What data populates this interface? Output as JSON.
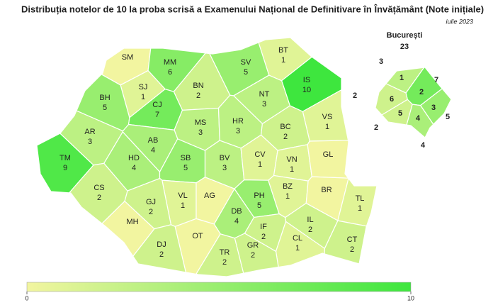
{
  "title": "Distribuția notelor de 10 la proba scrisă a Examenului Național de Definitivare în Învățământ (Note inițiale)",
  "subtitle": "iulie 2023",
  "counties": [
    {
      "code": "SM",
      "value": null
    },
    {
      "code": "MM",
      "value": 6
    },
    {
      "code": "BT",
      "value": 1
    },
    {
      "code": "SV",
      "value": 5
    },
    {
      "code": "IS",
      "value": 10
    },
    {
      "code": "SJ",
      "value": 1
    },
    {
      "code": "BN",
      "value": 2
    },
    {
      "code": "NT",
      "value": 3
    },
    {
      "code": "BH",
      "value": 5
    },
    {
      "code": "CJ",
      "value": 7
    },
    {
      "code": "VS",
      "value": 1
    },
    {
      "code": "MS",
      "value": 3
    },
    {
      "code": "HR",
      "value": 3
    },
    {
      "code": "BC",
      "value": 2
    },
    {
      "code": "AR",
      "value": 3
    },
    {
      "code": "AB",
      "value": 4
    },
    {
      "code": "TM",
      "value": 9
    },
    {
      "code": "HD",
      "value": 4
    },
    {
      "code": "SB",
      "value": 5
    },
    {
      "code": "BV",
      "value": 3
    },
    {
      "code": "CV",
      "value": 1
    },
    {
      "code": "VN",
      "value": 1
    },
    {
      "code": "GL",
      "value": null
    },
    {
      "code": "CS",
      "value": 2
    },
    {
      "code": "VL",
      "value": 1
    },
    {
      "code": "AG",
      "value": null
    },
    {
      "code": "PH",
      "value": 5
    },
    {
      "code": "BZ",
      "value": 1
    },
    {
      "code": "BR",
      "value": null
    },
    {
      "code": "TL",
      "value": 1
    },
    {
      "code": "GJ",
      "value": 2
    },
    {
      "code": "MH",
      "value": null
    },
    {
      "code": "DB",
      "value": 4
    },
    {
      "code": "IL",
      "value": 2
    },
    {
      "code": "DJ",
      "value": 2
    },
    {
      "code": "OT",
      "value": null
    },
    {
      "code": "IF",
      "value": 2
    },
    {
      "code": "CL",
      "value": 1
    },
    {
      "code": "CT",
      "value": 2
    },
    {
      "code": "TR",
      "value": 2
    },
    {
      "code": "GR",
      "value": 2
    }
  ],
  "bucharest": {
    "name": "București",
    "total": 23,
    "sectors": [
      {
        "sector": 1,
        "value": 3
      },
      {
        "sector": 2,
        "value": 7
      },
      {
        "sector": 3,
        "value": 5
      },
      {
        "sector": 4,
        "value": 4
      },
      {
        "sector": 5,
        "value": 2
      },
      {
        "sector": 6,
        "value": 2
      }
    ]
  },
  "colorbar": {
    "range": [
      0,
      10
    ],
    "ticks": [
      0,
      10
    ],
    "colors": [
      "#f2f5a0",
      "#3ee63e"
    ]
  }
}
